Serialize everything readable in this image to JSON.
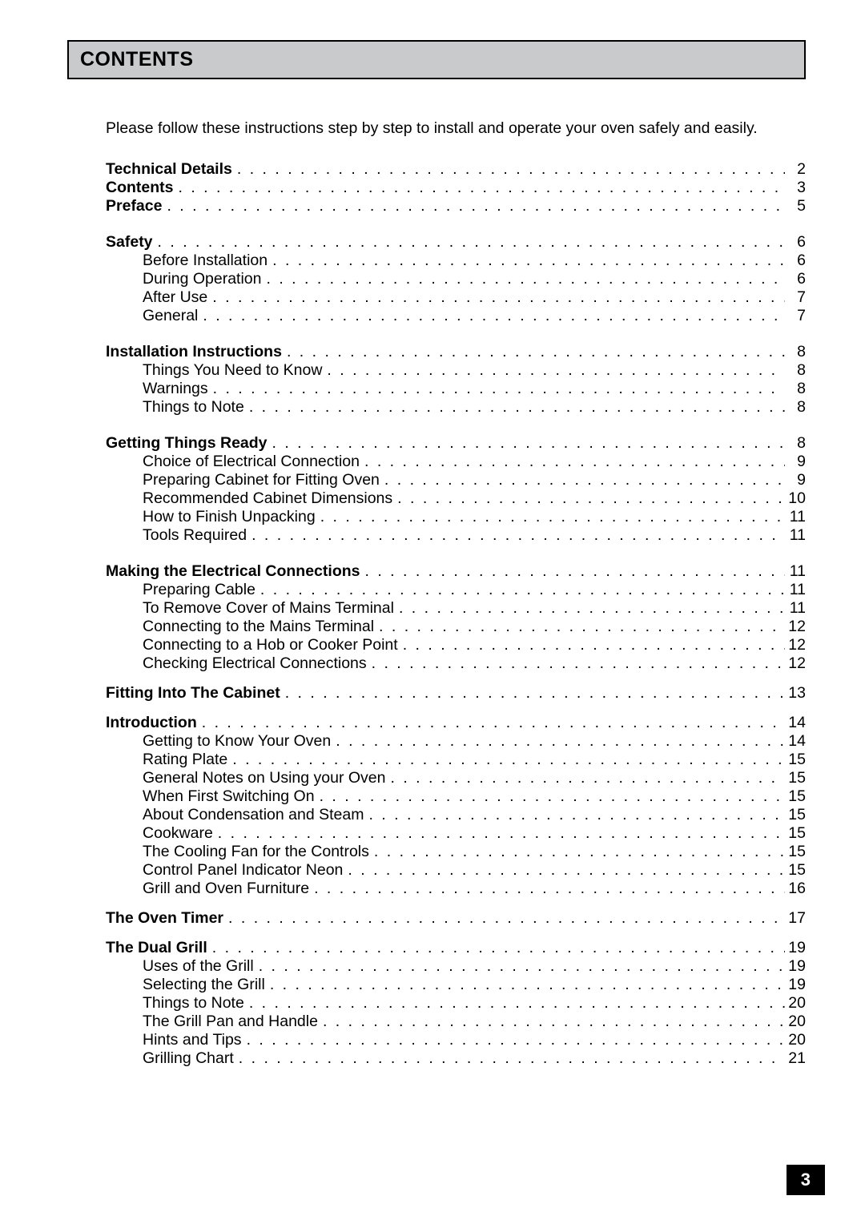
{
  "header": "CONTENTS",
  "intro": "Please follow these instructions step by step to install and operate your oven safely and easily.",
  "page_number": "3",
  "groups": [
    {
      "snug": false,
      "rows": [
        {
          "label": "Technical Details",
          "page": "2",
          "bold": true,
          "indent": false
        },
        {
          "label": "Contents",
          "page": "3",
          "bold": true,
          "indent": false
        },
        {
          "label": "Preface",
          "page": "5",
          "bold": true,
          "indent": false
        }
      ]
    },
    {
      "snug": false,
      "rows": [
        {
          "label": "Safety",
          "page": "6",
          "bold": true,
          "indent": false
        },
        {
          "label": "Before Installation",
          "page": "6",
          "bold": false,
          "indent": true
        },
        {
          "label": "During Operation",
          "page": "6",
          "bold": false,
          "indent": true
        },
        {
          "label": "After Use",
          "page": "7",
          "bold": false,
          "indent": true
        },
        {
          "label": "General",
          "page": "7",
          "bold": false,
          "indent": true
        }
      ]
    },
    {
      "snug": false,
      "rows": [
        {
          "label": "Installation Instructions",
          "page": "8",
          "bold": true,
          "indent": false
        },
        {
          "label": "Things You Need to Know",
          "page": "8",
          "bold": false,
          "indent": true
        },
        {
          "label": "Warnings",
          "page": "8",
          "bold": false,
          "indent": true
        },
        {
          "label": "Things to Note",
          "page": "8",
          "bold": false,
          "indent": true
        }
      ]
    },
    {
      "snug": false,
      "rows": [
        {
          "label": "Getting Things Ready",
          "page": "8",
          "bold": true,
          "indent": false
        },
        {
          "label": "Choice of Electrical Connection",
          "page": "9",
          "bold": false,
          "indent": true
        },
        {
          "label": "Preparing Cabinet for Fitting Oven",
          "page": "9",
          "bold": false,
          "indent": true
        },
        {
          "label": "Recommended Cabinet Dimensions",
          "page": "10",
          "bold": false,
          "indent": true
        },
        {
          "label": "How to Finish Unpacking",
          "page": "11",
          "bold": false,
          "indent": true
        },
        {
          "label": "Tools Required",
          "page": "11",
          "bold": false,
          "indent": true
        }
      ]
    },
    {
      "snug": true,
      "rows": [
        {
          "label": "Making the Electrical Connections",
          "page": "11",
          "bold": true,
          "indent": false
        },
        {
          "label": "Preparing Cable",
          "page": "11",
          "bold": false,
          "indent": true
        },
        {
          "label": "To Remove Cover of Mains Terminal",
          "page": "11",
          "bold": false,
          "indent": true
        },
        {
          "label": "Connecting to the Mains Terminal",
          "page": "12",
          "bold": false,
          "indent": true
        },
        {
          "label": "Connecting to a Hob or Cooker Point",
          "page": "12",
          "bold": false,
          "indent": true
        },
        {
          "label": "Checking Electrical Connections",
          "page": "12",
          "bold": false,
          "indent": true
        }
      ]
    },
    {
      "snug": true,
      "rows": [
        {
          "label": "Fitting Into The Cabinet",
          "page": "13",
          "bold": true,
          "indent": false
        }
      ]
    },
    {
      "snug": true,
      "rows": [
        {
          "label": "Introduction",
          "page": "14",
          "bold": true,
          "indent": false
        },
        {
          "label": "Getting to Know Your Oven",
          "page": "14",
          "bold": false,
          "indent": true
        },
        {
          "label": "Rating Plate",
          "page": "15",
          "bold": false,
          "indent": true
        },
        {
          "label": "General Notes on Using your Oven",
          "page": "15",
          "bold": false,
          "indent": true
        },
        {
          "label": "When First Switching On",
          "page": "15",
          "bold": false,
          "indent": true
        },
        {
          "label": "About Condensation and Steam",
          "page": "15",
          "bold": false,
          "indent": true
        },
        {
          "label": "Cookware",
          "page": "15",
          "bold": false,
          "indent": true
        },
        {
          "label": "The Cooling Fan for the Controls",
          "page": "15",
          "bold": false,
          "indent": true
        },
        {
          "label": "Control Panel Indicator Neon",
          "page": "15",
          "bold": false,
          "indent": true
        },
        {
          "label": "Grill and Oven Furniture",
          "page": "16",
          "bold": false,
          "indent": true
        }
      ]
    },
    {
      "snug": true,
      "rows": [
        {
          "label": "The Oven Timer",
          "page": "17",
          "bold": true,
          "indent": false
        }
      ]
    },
    {
      "snug": false,
      "rows": [
        {
          "label": "The Dual Grill",
          "page": "19",
          "bold": true,
          "indent": false
        },
        {
          "label": "Uses of the Grill",
          "page": "19",
          "bold": false,
          "indent": true
        },
        {
          "label": "Selecting the Grill",
          "page": "19",
          "bold": false,
          "indent": true
        },
        {
          "label": "Things to Note",
          "page": "20",
          "bold": false,
          "indent": true
        },
        {
          "label": "The Grill Pan and Handle",
          "page": "20",
          "bold": false,
          "indent": true
        },
        {
          "label": "Hints and Tips",
          "page": "20",
          "bold": false,
          "indent": true
        },
        {
          "label": "Grilling Chart",
          "page": "21",
          "bold": false,
          "indent": true
        }
      ]
    }
  ]
}
